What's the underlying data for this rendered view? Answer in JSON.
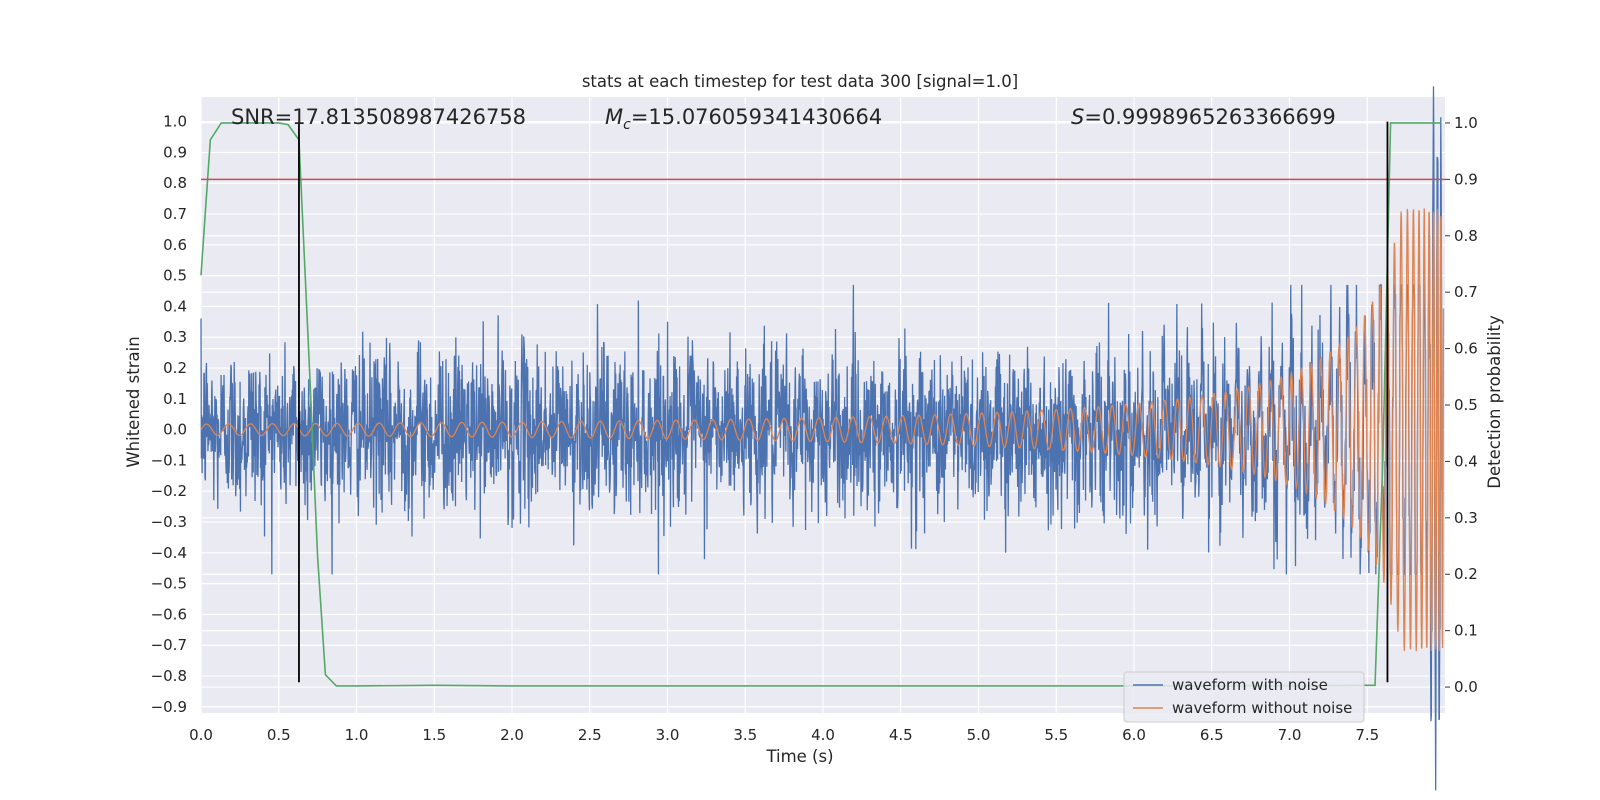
{
  "chart_data": {
    "type": "line",
    "title": "stats at each timestep for test data 300 [signal=1.0]",
    "xlabel": "Time (s)",
    "ylabel": "Whitened strain",
    "y2label": "Detection probability",
    "xlim": [
      0.0,
      8.0
    ],
    "ylim": [
      -0.92,
      1.08
    ],
    "y2lim": [
      -0.046,
      1.046
    ],
    "x_ticks": [
      "0.0",
      "0.5",
      "1.0",
      "1.5",
      "2.0",
      "2.5",
      "3.0",
      "3.5",
      "4.0",
      "4.5",
      "5.0",
      "5.5",
      "6.0",
      "6.5",
      "7.0",
      "7.5"
    ],
    "y_ticks": [
      "1.0",
      "0.9",
      "0.8",
      "0.7",
      "0.6",
      "0.5",
      "0.4",
      "0.3",
      "0.2",
      "0.1",
      "0.0",
      "−0.1",
      "−0.2",
      "−0.3",
      "−0.4",
      "−0.5",
      "−0.6",
      "−0.7",
      "−0.8",
      "−0.9"
    ],
    "y2_ticks": [
      "1.0",
      "0.9",
      "0.8",
      "0.7",
      "0.6",
      "0.5",
      "0.4",
      "0.3",
      "0.2",
      "0.1",
      "0.0"
    ],
    "annotations": {
      "snr": "SNR=17.813508987426758",
      "mc_symbol": "M",
      "mc_subscript": "c",
      "mc_value": "=15.076059341430664",
      "s_symbol": "S",
      "s_value": "=0.9998965263366699"
    },
    "threshold_y2": 0.9,
    "vlines_x": [
      0.63,
      7.63
    ],
    "vline_y_range": [
      -0.82,
      1.0
    ],
    "series": [
      {
        "name": "waveform with noise",
        "color": "#4c72b0",
        "kind": "noise",
        "baseline_std": 0.13
      },
      {
        "name": "waveform without noise",
        "color": "#dd8452",
        "kind": "chirp",
        "tc": 8.02,
        "amp_start": 0.018,
        "amp_end": 0.72
      },
      {
        "name": "detection probability",
        "color": "#55a868",
        "axis": "right",
        "x": [
          0.0,
          0.06,
          0.13,
          0.2,
          0.3,
          0.4,
          0.5,
          0.56,
          0.63,
          0.7,
          0.75,
          0.8,
          0.87,
          1.0,
          1.5,
          2.0,
          3.0,
          4.0,
          5.0,
          6.0,
          7.0,
          7.48,
          7.55,
          7.6,
          7.65,
          7.7,
          7.8,
          7.9,
          7.97
        ],
        "values": [
          0.73,
          0.97,
          1.0,
          1.0,
          1.0,
          1.0,
          1.0,
          0.997,
          0.97,
          0.55,
          0.23,
          0.022,
          0.002,
          0.002,
          0.003,
          0.002,
          0.002,
          0.002,
          0.002,
          0.002,
          0.002,
          0.003,
          0.003,
          0.4,
          1.0,
          1.0,
          1.0,
          1.0,
          1.0
        ]
      },
      {
        "name": "threshold",
        "color": "#c44e52",
        "axis": "right"
      }
    ],
    "legend": {
      "position": "lower-right",
      "entries": [
        "waveform with noise",
        "waveform without noise"
      ]
    },
    "grid": true,
    "colors": {
      "axes_bg": "#eaeaf2",
      "grid": "#ffffff",
      "vline": "#000000"
    }
  }
}
